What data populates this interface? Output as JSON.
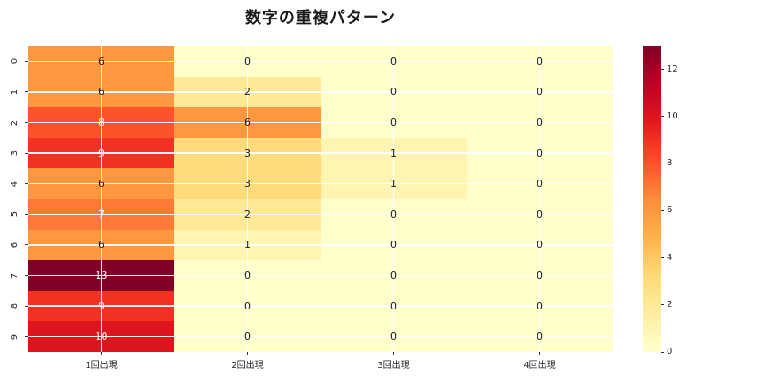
{
  "chart_data": {
    "type": "heatmap",
    "title": "数字の重複パターン",
    "row_labels": [
      "0",
      "1",
      "2",
      "3",
      "4",
      "5",
      "6",
      "7",
      "8",
      "9"
    ],
    "col_labels": [
      "1回出現",
      "2回出現",
      "3回出現",
      "4回出現"
    ],
    "values": [
      [
        6,
        0,
        0,
        0
      ],
      [
        6,
        2,
        0,
        0
      ],
      [
        8,
        6,
        0,
        0
      ],
      [
        9,
        3,
        1,
        0
      ],
      [
        6,
        3,
        1,
        0
      ],
      [
        7,
        2,
        0,
        0
      ],
      [
        6,
        1,
        0,
        0
      ],
      [
        13,
        0,
        0,
        0
      ],
      [
        9,
        0,
        0,
        0
      ],
      [
        10,
        0,
        0,
        0
      ]
    ],
    "vmin": 0,
    "vmax": 13,
    "colormap_name": "YlOrRd",
    "colormap_stops": [
      "#ffffcc",
      "#ffeda0",
      "#fed976",
      "#feb24c",
      "#fd8d3c",
      "#fc4e2a",
      "#e31a1c",
      "#bd0026",
      "#800026"
    ],
    "colorbar_ticks": [
      "0",
      "2",
      "4",
      "6",
      "8",
      "10",
      "12"
    ],
    "grid_color": "#ffffff",
    "annotation_color_dark": "#1a1a1a",
    "annotation_color_light": "#ffffff",
    "tick_color": "#262626",
    "legend_position": "right",
    "grid": "white lines through cell centers"
  }
}
